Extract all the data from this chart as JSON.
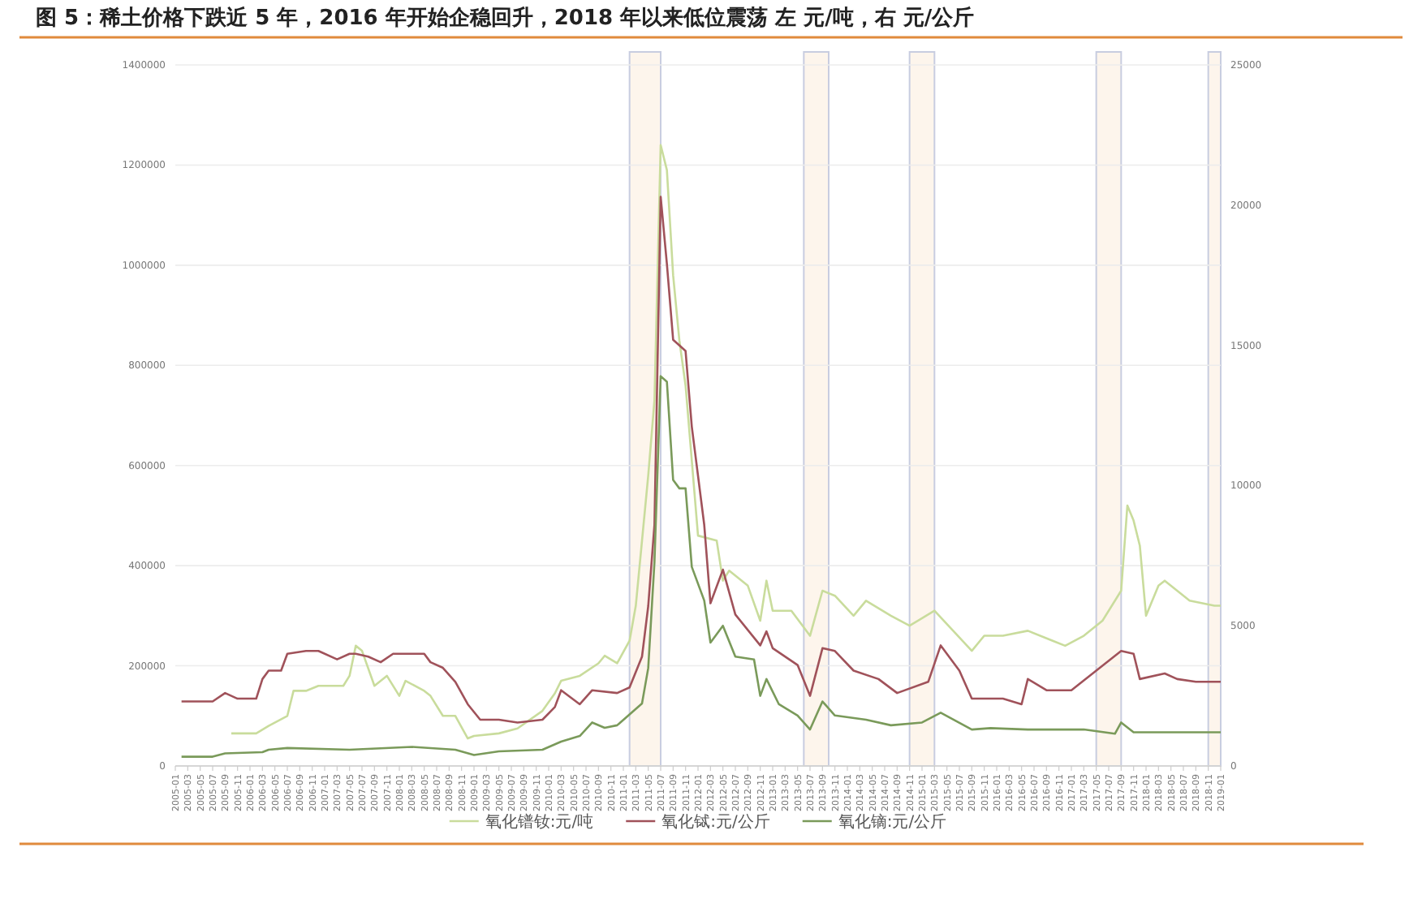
{
  "chart_data": {
    "type": "line",
    "title": "图 5：稀土价格下跌近 5 年，2016 年开始企稳回升，2018 年以来低位震荡   左 元/吨，右 元/公斤",
    "xlim": [
      "2005-01",
      "2019-01"
    ],
    "xticks": [
      "2005-01",
      "2005-03",
      "2005-05",
      "2005-07",
      "2005-09",
      "2005-11",
      "2006-01",
      "2006-03",
      "2006-05",
      "2006-07",
      "2006-09",
      "2006-11",
      "2007-01",
      "2007-03",
      "2007-05",
      "2007-07",
      "2007-09",
      "2007-11",
      "2008-01",
      "2008-03",
      "2008-05",
      "2008-07",
      "2008-09",
      "2008-11",
      "2009-01",
      "2009-03",
      "2009-05",
      "2009-07",
      "2009-09",
      "2009-11",
      "2010-01",
      "2010-03",
      "2010-05",
      "2010-07",
      "2010-09",
      "2010-11",
      "2011-01",
      "2011-03",
      "2011-05",
      "2011-07",
      "2011-09",
      "2011-11",
      "2012-01",
      "2012-03",
      "2012-05",
      "2012-07",
      "2012-09",
      "2012-11",
      "2013-01",
      "2013-03",
      "2013-05",
      "2013-07",
      "2013-09",
      "2013-11",
      "2014-01",
      "2014-03",
      "2014-05",
      "2014-07",
      "2014-09",
      "2014-11",
      "2015-01",
      "2015-03",
      "2015-05",
      "2015-07",
      "2015-09",
      "2015-11",
      "2016-01",
      "2016-03",
      "2016-05",
      "2016-07",
      "2016-09",
      "2016-11",
      "2017-01",
      "2017-03",
      "2017-05",
      "2017-07",
      "2017-09",
      "2017-11",
      "2018-01",
      "2018-03",
      "2018-05",
      "2018-07",
      "2018-09",
      "2018-11",
      "2019-01"
    ],
    "ylim": [
      0,
      1400000
    ],
    "yticks": [
      0,
      200000,
      400000,
      600000,
      800000,
      1000000,
      1200000,
      1400000
    ],
    "y2lim": [
      0,
      25000
    ],
    "y2ticks": [
      0,
      5000,
      10000,
      15000,
      20000,
      25000
    ],
    "grid": "y",
    "legend": "bottom",
    "bands": [
      {
        "axis": "x",
        "from": "2011-02",
        "to": "2011-07",
        "color": "#fdf5ec"
      },
      {
        "axis": "x",
        "from": "2013-06",
        "to": "2013-10",
        "color": "#fdf5ec"
      },
      {
        "axis": "x",
        "from": "2014-11",
        "to": "2015-03",
        "color": "#fdf5ec"
      },
      {
        "axis": "x",
        "from": "2017-05",
        "to": "2017-09",
        "color": "#fdf5ec"
      },
      {
        "axis": "x",
        "from": "2018-11",
        "to": "2019-01",
        "color": "#fdf5ec"
      }
    ],
    "series": [
      {
        "name": "氧化镨钕:元/吨",
        "color": "#c9dc9c",
        "x": [
          "2005-10",
          "2006-02",
          "2006-04",
          "2006-07",
          "2006-08",
          "2006-10",
          "2006-12",
          "2007-04",
          "2007-05",
          "2007-06",
          "2007-07",
          "2007-09",
          "2007-11",
          "2008-01",
          "2008-02",
          "2008-05",
          "2008-06",
          "2008-08",
          "2008-10",
          "2008-12",
          "2009-01",
          "2009-05",
          "2009-08",
          "2009-12",
          "2010-02",
          "2010-03",
          "2010-06",
          "2010-09",
          "2010-10",
          "2010-12",
          "2011-02",
          "2011-03",
          "2011-04",
          "2011-05",
          "2011-06",
          "2011-07",
          "2011-08",
          "2011-09",
          "2011-10",
          "2011-11",
          "2012-01",
          "2012-04",
          "2012-05",
          "2012-06",
          "2012-09",
          "2012-11",
          "2012-12",
          "2013-01",
          "2013-04",
          "2013-07",
          "2013-09",
          "2013-11",
          "2014-02",
          "2014-04",
          "2014-08",
          "2014-11",
          "2015-03",
          "2015-06",
          "2015-09",
          "2015-11",
          "2016-02",
          "2016-06",
          "2016-10",
          "2016-12",
          "2017-03",
          "2017-06",
          "2017-09",
          "2017-10",
          "2017-11",
          "2017-12",
          "2018-01",
          "2018-03",
          "2018-04",
          "2018-06",
          "2018-08",
          "2018-12",
          "2019-01"
        ],
        "values": [
          65000,
          65000,
          80000,
          100000,
          150000,
          150000,
          160000,
          160000,
          180000,
          240000,
          230000,
          160000,
          180000,
          140000,
          170000,
          150000,
          140000,
          100000,
          100000,
          55000,
          60000,
          65000,
          75000,
          110000,
          145000,
          170000,
          180000,
          205000,
          220000,
          205000,
          250000,
          320000,
          450000,
          580000,
          730000,
          1240000,
          1190000,
          980000,
          850000,
          760000,
          460000,
          450000,
          370000,
          390000,
          360000,
          290000,
          370000,
          310000,
          310000,
          260000,
          350000,
          340000,
          300000,
          330000,
          300000,
          280000,
          310000,
          270000,
          230000,
          260000,
          260000,
          270000,
          250000,
          240000,
          260000,
          290000,
          350000,
          520000,
          490000,
          440000,
          300000,
          360000,
          370000,
          350000,
          330000,
          320000,
          320000
        ]
      },
      {
        "name": "氧化铽:元/公斤",
        "color": "#a0525a",
        "axis": "y2",
        "x": [
          "2005-02",
          "2005-07",
          "2005-09",
          "2005-11",
          "2006-02",
          "2006-03",
          "2006-04",
          "2006-06",
          "2006-07",
          "2006-10",
          "2006-12",
          "2007-03",
          "2007-05",
          "2007-06",
          "2007-08",
          "2007-10",
          "2007-12",
          "2008-05",
          "2008-06",
          "2008-08",
          "2008-10",
          "2008-12",
          "2009-02",
          "2009-05",
          "2009-08",
          "2009-12",
          "2010-02",
          "2010-03",
          "2010-06",
          "2010-08",
          "2010-12",
          "2011-02",
          "2011-04",
          "2011-05",
          "2011-06",
          "2011-07",
          "2011-08",
          "2011-09",
          "2011-11",
          "2011-12",
          "2012-02",
          "2012-03",
          "2012-05",
          "2012-07",
          "2012-11",
          "2012-12",
          "2013-01",
          "2013-05",
          "2013-07",
          "2013-09",
          "2013-11",
          "2014-02",
          "2014-06",
          "2014-09",
          "2015-02",
          "2015-04",
          "2015-07",
          "2015-09",
          "2016-02",
          "2016-05",
          "2016-06",
          "2016-09",
          "2017-01",
          "2017-05",
          "2017-09",
          "2017-11",
          "2017-12",
          "2018-04",
          "2018-06",
          "2018-09",
          "2019-01"
        ],
        "values": [
          2300,
          2300,
          2600,
          2400,
          2400,
          3100,
          3400,
          3400,
          4000,
          4100,
          4100,
          3800,
          4000,
          4000,
          3900,
          3700,
          4000,
          4000,
          3700,
          3500,
          3000,
          2200,
          1650,
          1650,
          1550,
          1650,
          2100,
          2700,
          2200,
          2700,
          2600,
          2800,
          3900,
          5700,
          8600,
          20300,
          17900,
          15200,
          14800,
          12100,
          8600,
          5800,
          7000,
          5400,
          4300,
          4800,
          4200,
          3600,
          2500,
          4200,
          4100,
          3400,
          3100,
          2600,
          3000,
          4300,
          3400,
          2400,
          2400,
          2200,
          3100,
          2700,
          2700,
          3400,
          4100,
          4000,
          3100,
          3300,
          3100,
          3000,
          3000
        ]
      },
      {
        "name": "氧化镝:元/公斤",
        "color": "#7a9a5a",
        "axis": "y2",
        "x": [
          "2005-02",
          "2005-07",
          "2005-09",
          "2006-03",
          "2006-04",
          "2006-07",
          "2007-05",
          "2008-03",
          "2008-10",
          "2009-01",
          "2009-05",
          "2009-12",
          "2010-03",
          "2010-06",
          "2010-08",
          "2010-10",
          "2010-12",
          "2011-02",
          "2011-04",
          "2011-05",
          "2011-06",
          "2011-07",
          "2011-08",
          "2011-09",
          "2011-10",
          "2011-11",
          "2011-12",
          "2012-02",
          "2012-03",
          "2012-05",
          "2012-07",
          "2012-10",
          "2012-11",
          "2012-12",
          "2013-02",
          "2013-05",
          "2013-07",
          "2013-09",
          "2013-11",
          "2014-04",
          "2014-08",
          "2015-01",
          "2015-04",
          "2015-09",
          "2015-12",
          "2016-06",
          "2017-03",
          "2017-08",
          "2017-09",
          "2017-11",
          "2018-04",
          "2019-01"
        ],
        "values": [
          330,
          330,
          450,
          490,
          580,
          640,
          580,
          680,
          580,
          390,
          520,
          580,
          870,
          1070,
          1550,
          1360,
          1450,
          1840,
          2230,
          3490,
          7270,
          13900,
          13700,
          10200,
          9900,
          9900,
          7100,
          5900,
          4400,
          5000,
          3900,
          3800,
          2500,
          3100,
          2200,
          1800,
          1300,
          2300,
          1800,
          1650,
          1450,
          1550,
          1900,
          1300,
          1350,
          1300,
          1300,
          1150,
          1550,
          1200,
          1200,
          1200
        ]
      }
    ]
  }
}
